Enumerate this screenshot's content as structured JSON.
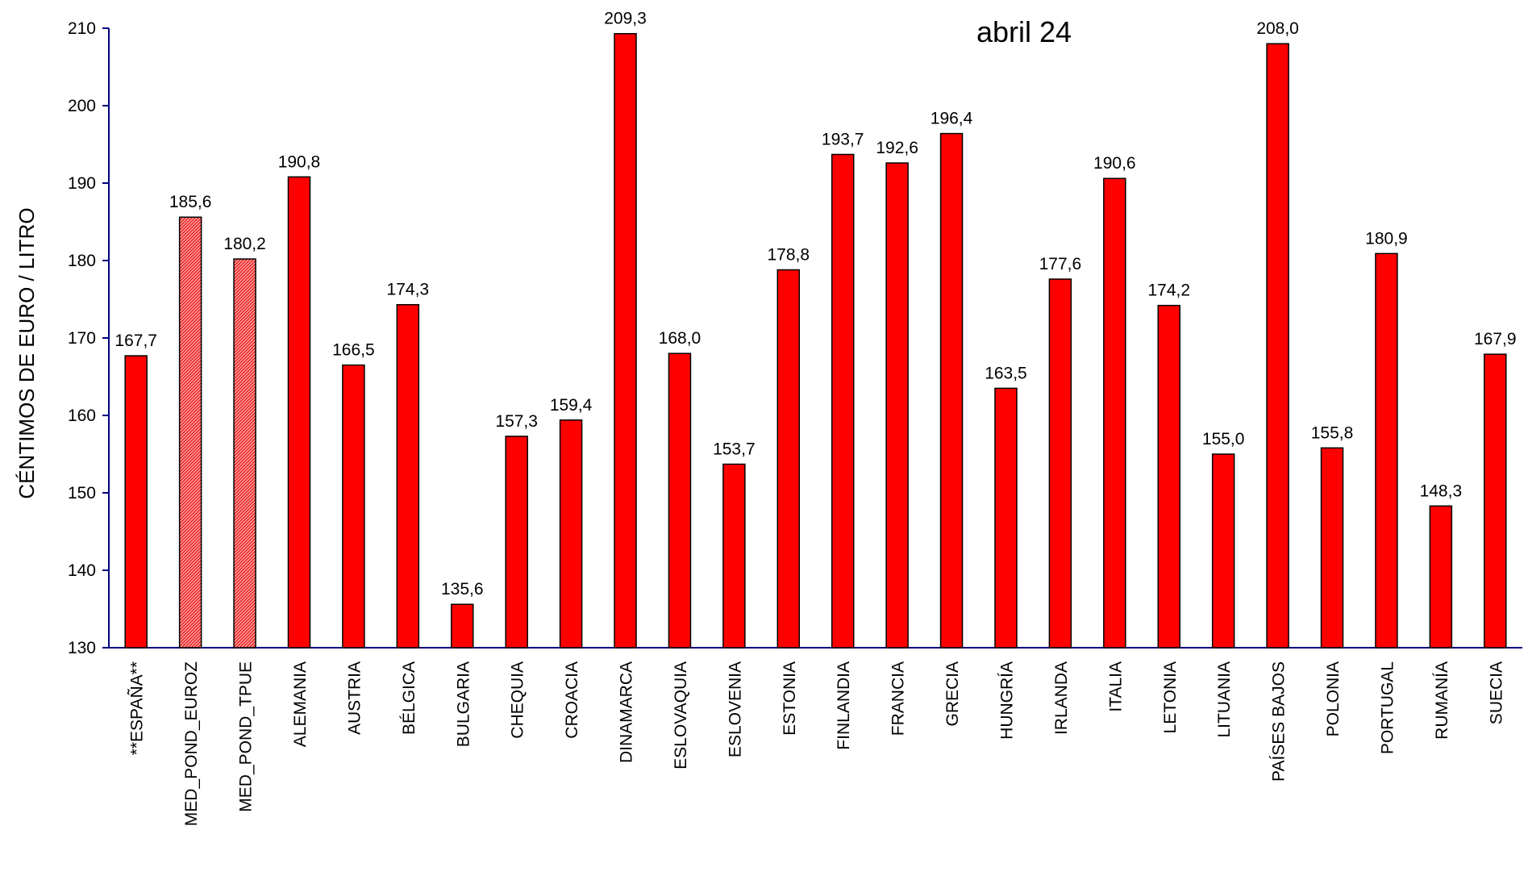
{
  "chart_data": {
    "type": "bar",
    "title": "abril 24",
    "ylabel": "CÉNTIMOS DE EURO / LITRO",
    "xlabel": "",
    "ylim": [
      130,
      210
    ],
    "yticks": [
      130,
      140,
      150,
      160,
      170,
      180,
      190,
      200,
      210
    ],
    "grid": false,
    "legend": "none",
    "categories": [
      "**ESPAÑA**",
      "MED_POND_EUROZ",
      "MED_POND_TPUE",
      "ALEMANIA",
      "AUSTRIA",
      "BÉLGICA",
      "BULGARIA",
      "CHEQUIA",
      "CROACIA",
      "DINAMARCA",
      "ESLOVAQUIA",
      "ESLOVENIA",
      "ESTONIA",
      "FINLANDIA",
      "FRANCIA",
      "GRECIA",
      "HUNGRÍA",
      "IRLANDA",
      "ITALIA",
      "LETONIA",
      "LITUANIA",
      "PAÍSES BAJOS",
      "POLONIA",
      "PORTUGAL",
      "RUMANÍA",
      "SUECIA"
    ],
    "values": [
      167.7,
      185.6,
      180.2,
      190.8,
      166.5,
      174.3,
      135.6,
      157.3,
      159.4,
      209.3,
      168.0,
      153.7,
      178.8,
      193.7,
      192.6,
      196.4,
      163.5,
      177.6,
      190.6,
      174.2,
      155.0,
      208.0,
      155.8,
      180.9,
      148.3,
      167.9
    ],
    "data_labels": [
      "167,7",
      "185,6",
      "180,2",
      "190,8",
      "166,5",
      "174,3",
      "135,6",
      "157,3",
      "159,4",
      "209,3",
      "168,0",
      "153,7",
      "178,8",
      "193,7",
      "192,6",
      "196,4",
      "163,5",
      "177,6",
      "190,6",
      "174,2",
      "155,0",
      "208,0",
      "155,8",
      "180,9",
      "148,3",
      "167,9"
    ],
    "hatched_categories": [
      "MED_POND_EUROZ",
      "MED_POND_TPUE"
    ],
    "colors": {
      "bar": "#ff0000",
      "hatched": "#ff8080",
      "outline": "#000000",
      "axis": "#000080"
    }
  }
}
